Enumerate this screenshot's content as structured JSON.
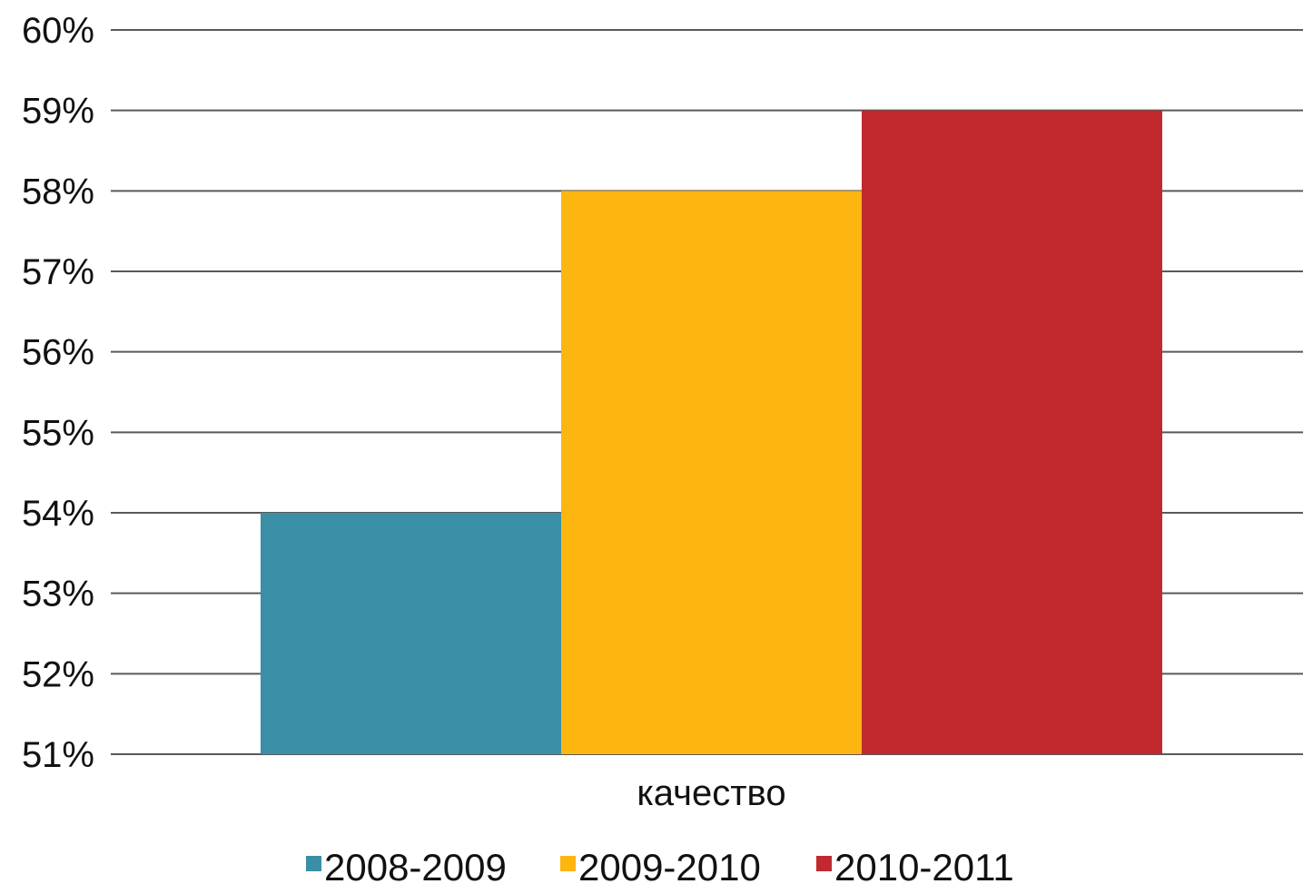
{
  "chart_data": {
    "type": "bar",
    "categories": [
      "качество"
    ],
    "series": [
      {
        "name": "2008-2009",
        "values": [
          54
        ],
        "color": "#3A8FA6"
      },
      {
        "name": "2009-2010",
        "values": [
          58
        ],
        "color": "#FDB50F"
      },
      {
        "name": "2010-2011",
        "values": [
          59
        ],
        "color": "#C1292E"
      }
    ],
    "ylim": [
      51,
      60
    ],
    "yticks": [
      "51%",
      "52%",
      "53%",
      "54%",
      "55%",
      "56%",
      "57%",
      "58%",
      "59%",
      "60%"
    ],
    "grid": true,
    "legend_position": "bottom",
    "title": "",
    "xlabel": "",
    "ylabel": ""
  }
}
